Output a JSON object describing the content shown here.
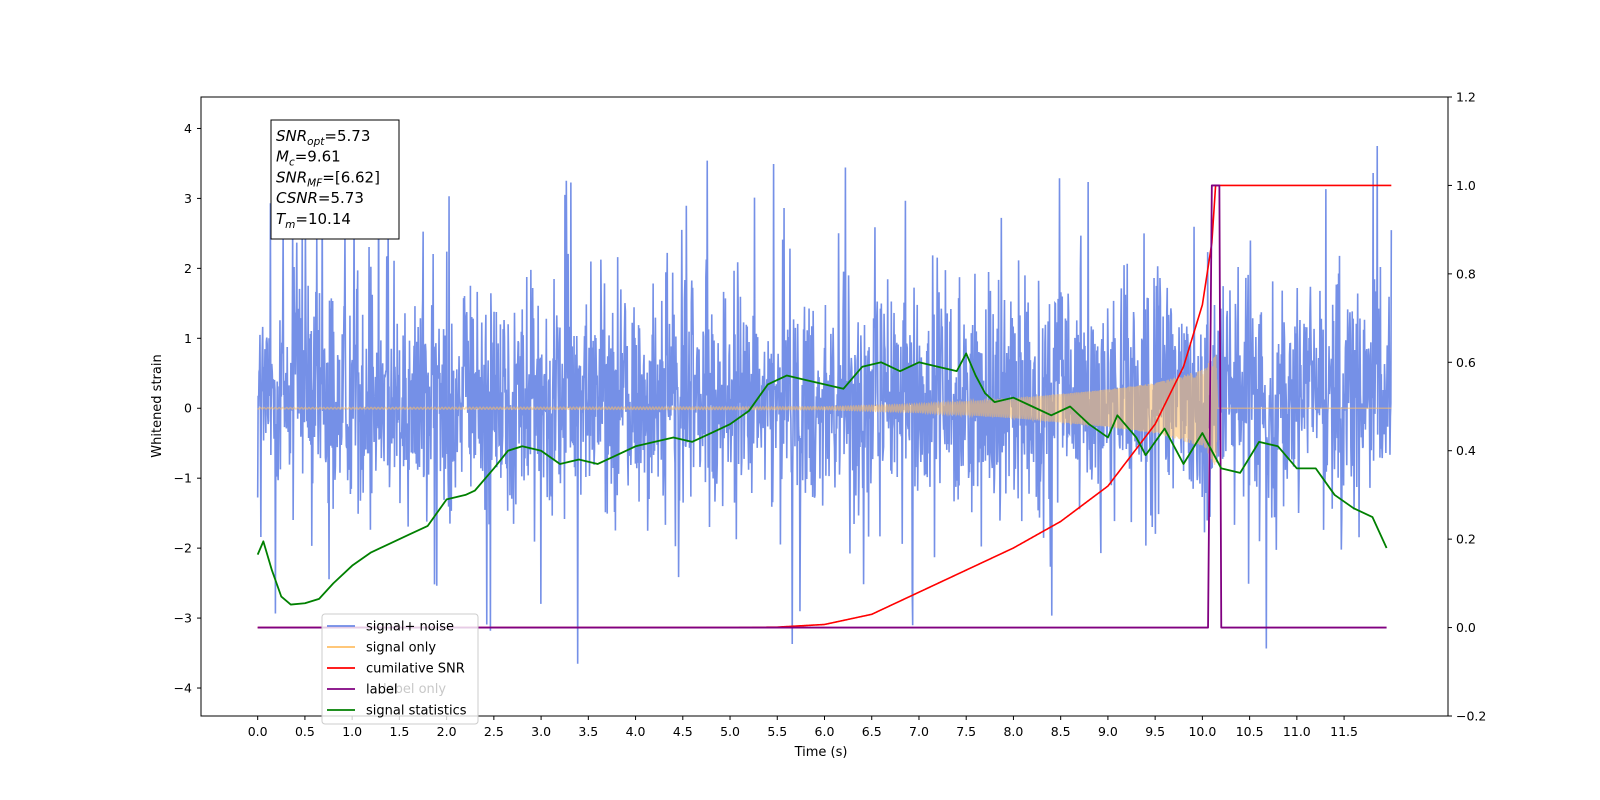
{
  "chart_data": {
    "type": "line",
    "xlabel": "Time (s)",
    "ylabel_left": "Whitened strain",
    "ylabel_right": "",
    "xlim": [
      -0.6,
      12.6
    ],
    "ylim_left": [
      -4.4,
      4.45
    ],
    "ylim_right": [
      -0.2,
      1.2
    ],
    "x_ticks": [
      "0.0",
      "0.5",
      "1.0",
      "1.5",
      "2.0",
      "2.5",
      "3.0",
      "3.5",
      "4.0",
      "4.5",
      "5.0",
      "5.5",
      "6.0",
      "6.5",
      "7.0",
      "7.5",
      "8.0",
      "8.5",
      "9.0",
      "9.5",
      "10.0",
      "10.5",
      "11.0",
      "11.5"
    ],
    "y_ticks_left": [
      "4",
      "3",
      "2",
      "1",
      "0",
      "−1",
      "−2",
      "−3",
      "−4"
    ],
    "y_ticks_right": [
      "1.2",
      "1.0",
      "0.8",
      "0.6",
      "0.4",
      "0.2",
      "0.0",
      "−0.2"
    ],
    "annotation": {
      "lines": [
        {
          "name": "SNR",
          "sub": "opt",
          "value": "=5.73"
        },
        {
          "name": "M",
          "sub": "c",
          "value": "=9.61"
        },
        {
          "name": "SNR",
          "sub": "MF",
          "value": "=[6.62]"
        },
        {
          "name": "CSNR",
          "sub": "",
          "value": "=5.73"
        },
        {
          "name": "T",
          "sub": "m",
          "value": "=10.14"
        }
      ]
    },
    "legend": {
      "placement": "lower-left",
      "entries": [
        {
          "label": "signal+ noise",
          "color": "#6e8ae6"
        },
        {
          "label": "signal only",
          "color": "#ffbf66"
        },
        {
          "label": "cumilative SNR",
          "color": "#ff0000"
        },
        {
          "label": "label",
          "color": "#800080"
        },
        {
          "label": "signal statistics",
          "color": "#008000"
        }
      ],
      "occluded_text": "label only"
    },
    "series": [
      {
        "name": "signal+ noise",
        "axis": "left",
        "color": "#6e8ae6",
        "x_range": [
          0,
          12
        ],
        "envelope_min": -3.7,
        "envelope_max": 3.75,
        "typical_range": [
          -1.8,
          2.2
        ]
      },
      {
        "name": "signal only",
        "axis": "left",
        "color": "#ffbf66",
        "x": [
          0,
          6.0,
          7.0,
          8.0,
          9.0,
          9.5,
          10.0,
          10.05,
          10.14,
          10.16,
          12.0
        ],
        "amplitude": [
          0.01,
          0.02,
          0.06,
          0.14,
          0.27,
          0.36,
          0.55,
          0.62,
          0.85,
          0.0,
          0.0
        ]
      },
      {
        "name": "cumilative SNR",
        "axis": "right",
        "color": "#ff0000",
        "x": [
          0,
          5.0,
          5.5,
          6.0,
          6.5,
          7.0,
          7.5,
          8.0,
          8.5,
          9.0,
          9.5,
          9.8,
          10.0,
          10.1,
          10.14,
          12.0
        ],
        "y": [
          0.0,
          0.0,
          0.001,
          0.007,
          0.03,
          0.08,
          0.13,
          0.18,
          0.24,
          0.32,
          0.46,
          0.59,
          0.73,
          0.87,
          1.0,
          1.0
        ]
      },
      {
        "name": "label",
        "axis": "right",
        "color": "#800080",
        "x": [
          0,
          10.06,
          10.1,
          10.18,
          10.2,
          11.95
        ],
        "y": [
          0,
          0,
          1.0,
          1.0,
          0,
          0
        ]
      },
      {
        "name": "signal statistics",
        "axis": "right",
        "color": "#008000",
        "x": [
          0,
          0.06,
          0.15,
          0.25,
          0.35,
          0.5,
          0.65,
          0.8,
          1.0,
          1.2,
          1.4,
          1.6,
          1.8,
          2.0,
          2.2,
          2.3,
          2.5,
          2.65,
          2.8,
          3.0,
          3.2,
          3.4,
          3.6,
          3.8,
          4.0,
          4.2,
          4.4,
          4.6,
          4.8,
          5.0,
          5.2,
          5.4,
          5.6,
          5.8,
          6.0,
          6.2,
          6.4,
          6.6,
          6.8,
          7.0,
          7.2,
          7.4,
          7.5,
          7.6,
          7.7,
          7.8,
          8.0,
          8.2,
          8.4,
          8.6,
          8.8,
          9.0,
          9.1,
          9.3,
          9.4,
          9.6,
          9.8,
          10.0,
          10.2,
          10.4,
          10.6,
          10.8,
          11.0,
          11.2,
          11.4,
          11.6,
          11.8,
          11.95
        ],
        "y": [
          0.165,
          0.195,
          0.13,
          0.07,
          0.052,
          0.055,
          0.065,
          0.1,
          0.14,
          0.17,
          0.19,
          0.21,
          0.23,
          0.29,
          0.3,
          0.31,
          0.36,
          0.4,
          0.41,
          0.4,
          0.37,
          0.38,
          0.37,
          0.39,
          0.41,
          0.42,
          0.43,
          0.42,
          0.44,
          0.46,
          0.49,
          0.55,
          0.57,
          0.56,
          0.55,
          0.54,
          0.59,
          0.6,
          0.58,
          0.6,
          0.59,
          0.58,
          0.62,
          0.57,
          0.53,
          0.51,
          0.52,
          0.5,
          0.48,
          0.5,
          0.46,
          0.43,
          0.48,
          0.43,
          0.39,
          0.45,
          0.37,
          0.44,
          0.36,
          0.35,
          0.42,
          0.41,
          0.36,
          0.36,
          0.3,
          0.27,
          0.25,
          0.18
        ]
      }
    ]
  }
}
